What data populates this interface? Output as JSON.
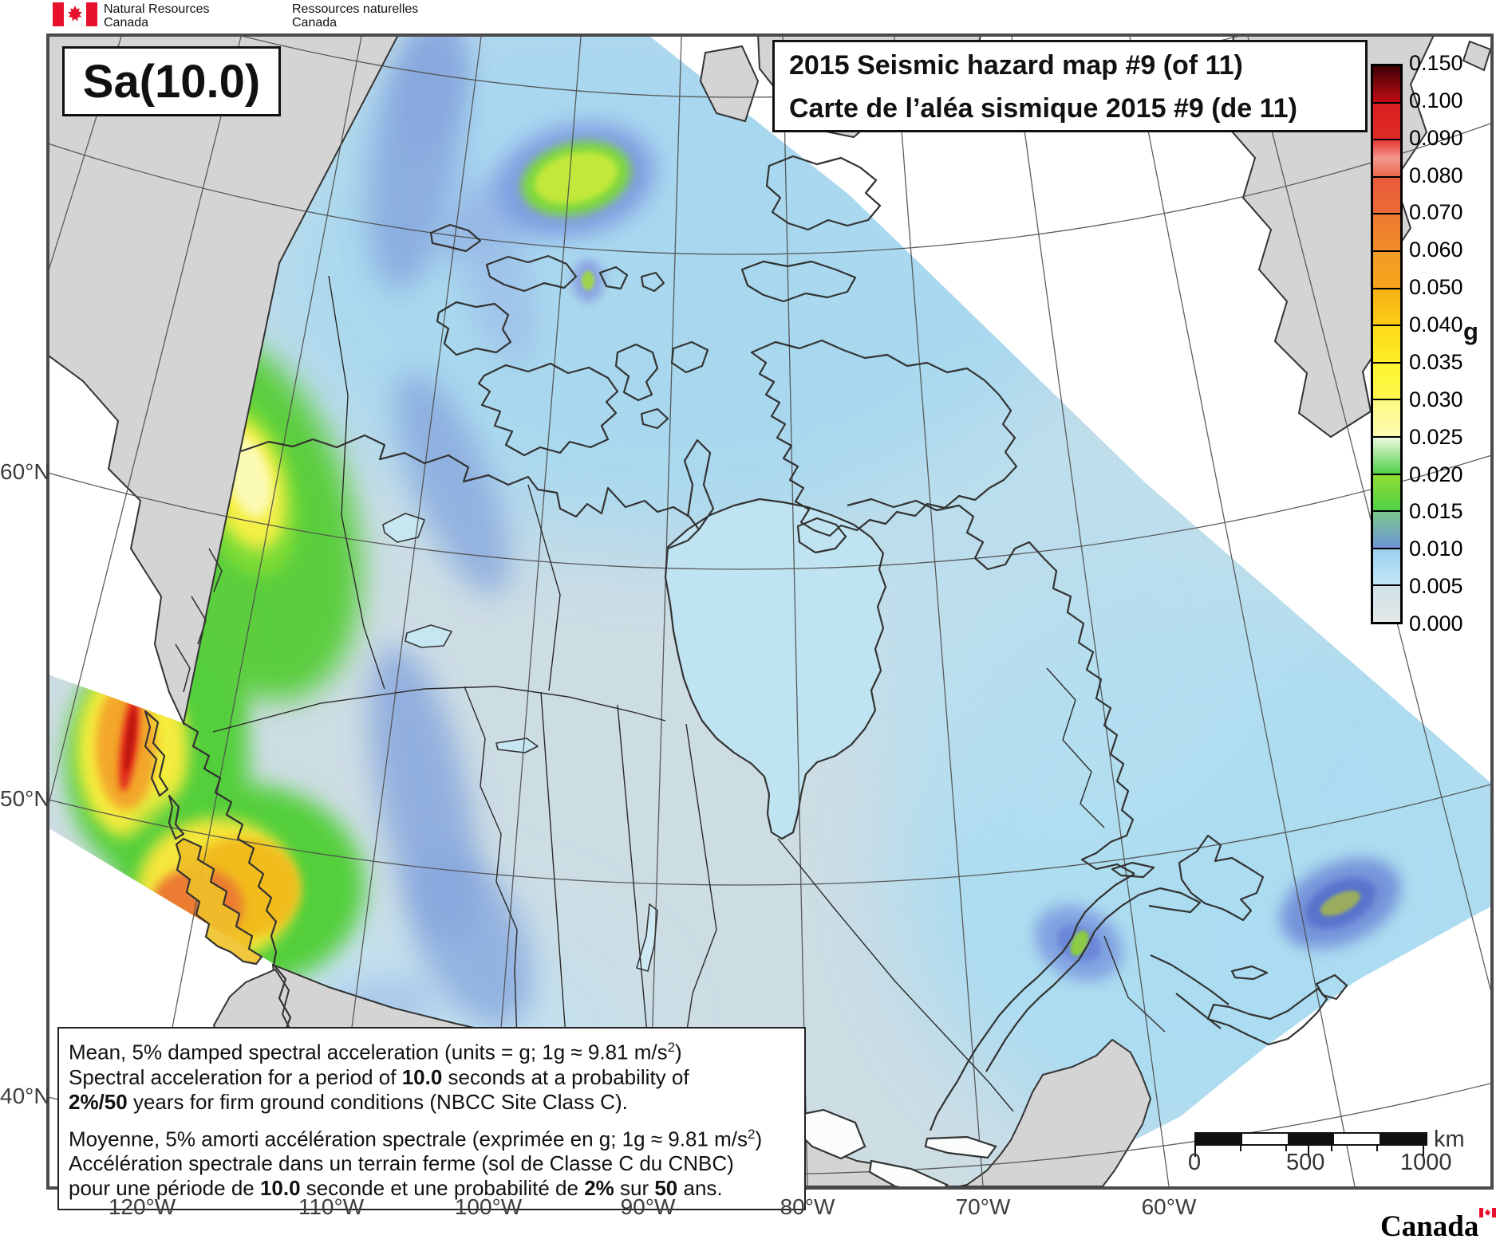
{
  "header": {
    "agency_en": [
      "Natural Resources",
      "Canada"
    ],
    "agency_fr": [
      "Ressources naturelles",
      "Canada"
    ]
  },
  "map_card": {
    "hazard_label": "Sa(10.0)",
    "title_en": "2015 Seismic hazard map #9 (of 11)",
    "title_fr": "Carte de l’aléa sismique 2015 #9 (de 11)"
  },
  "legend": {
    "unit": "g",
    "ticks": [
      "0.150",
      "0.100",
      "0.090",
      "0.080",
      "0.070",
      "0.060",
      "0.050",
      "0.040",
      "0.035",
      "0.030",
      "0.025",
      "0.020",
      "0.015",
      "0.010",
      "0.005",
      "0.000"
    ],
    "segments": [
      [
        "#3f0105",
        "#c00d13"
      ],
      [
        "#d81f20",
        "#e02b26"
      ],
      [
        "#e43a33",
        "#f2978e",
        "#ea6a4a"
      ],
      [
        "#e95c3c",
        "#ec6a35"
      ],
      [
        "#ee7a31",
        "#f18c2b"
      ],
      [
        "#f29a28",
        "#f6a41c"
      ],
      [
        "#f6b113",
        "#fccc15"
      ],
      [
        "#fdd91a",
        "#fdee26"
      ],
      [
        "#fdf52e",
        "#fdf84d"
      ],
      [
        "#fdf982",
        "#fdfcb0"
      ],
      [
        "#eef8df",
        "#4ed04a"
      ],
      [
        "#90dd33",
        "#4fd148"
      ],
      [
        "#79c88a",
        "#6f94d8"
      ],
      [
        "#9cd0f0",
        "#c4e7f6"
      ],
      [
        "#cfe2ea",
        "#e4e8e7"
      ]
    ]
  },
  "axes": {
    "lat": [
      "60°N",
      "50°N",
      "40°N"
    ],
    "lon": [
      "120°W",
      "110°W",
      "100°W",
      "90°W",
      "80°W",
      "70°W",
      "60°W"
    ]
  },
  "description": {
    "en": [
      [
        {
          "t": "Mean, 5% damped spectral acceleration (units = g; 1g ≈ 9.81 m/s"
        },
        {
          "t": "2",
          "sup": 1
        },
        {
          "t": ")"
        }
      ],
      [
        {
          "t": "Spectral acceleration for a period of "
        },
        {
          "t": "10.0",
          "b": 1
        },
        {
          "t": " seconds at a probability of"
        }
      ],
      [
        {
          "t": "2%/50",
          "b": 1
        },
        {
          "t": " years for firm ground conditions (NBCC Site Class C)."
        }
      ]
    ],
    "fr": [
      [
        {
          "t": "Moyenne, 5% amorti accélération spectrale (exprimée en g; 1g ≈ 9.81 m/s"
        },
        {
          "t": "2",
          "sup": 1
        },
        {
          "t": ")"
        }
      ],
      [
        {
          "t": "Accélération spectrale dans un terrain ferme (sol de Classe C du CNBC)"
        }
      ],
      [
        {
          "t": "pour une période de "
        },
        {
          "t": "10.0",
          "b": 1
        },
        {
          "t": " seconde et une probabilité de "
        },
        {
          "t": "2%",
          "b": 1
        },
        {
          "t": " sur "
        },
        {
          "t": "50",
          "b": 1
        },
        {
          "t": " ans."
        }
      ]
    ]
  },
  "scalebar": {
    "tick_labels": [
      "0",
      "500",
      "1000"
    ],
    "unit": "km"
  },
  "wordmark": "Canada",
  "colors": {
    "hazard_low": "#cddde4",
    "hazard_water": "#a9dcf2",
    "land_no_data": "#d4d4d4",
    "hotspot_red": "#e12d1c"
  }
}
